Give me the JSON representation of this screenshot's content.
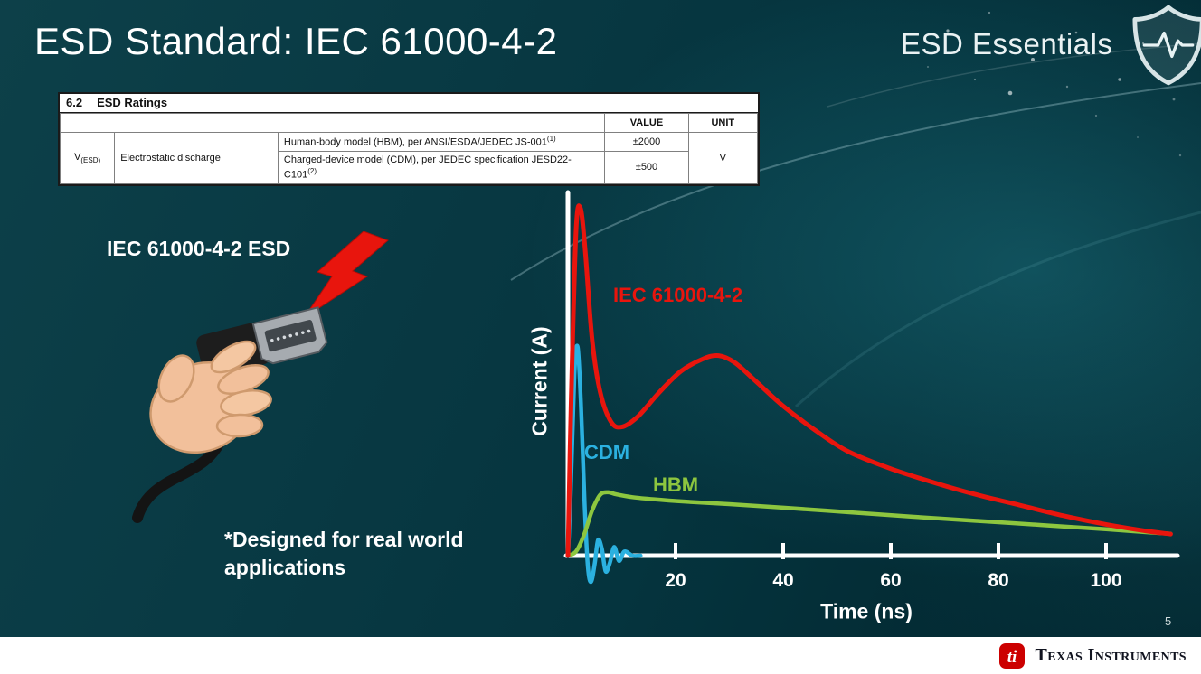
{
  "slide": {
    "title": "ESD Standard: IEC 61000-4-2",
    "program_name": "ESD Essentials",
    "page_number": "5",
    "header_icon": "shield-pulse-icon"
  },
  "ratings_table": {
    "section_number": "6.2",
    "section_title": "ESD Ratings",
    "value_header": "VALUE",
    "unit_header": "UNIT",
    "param_symbol": "V",
    "param_subscript": "(ESD)",
    "param_name": "Electrostatic discharge",
    "rows": [
      {
        "model": "Human-body model (HBM), per ANSI/ESDA/JEDEC JS-001",
        "footnote": "(1)",
        "value": "±2000"
      },
      {
        "model": "Charged-device model (CDM), per JEDEC specification JESD22-C101",
        "footnote": "(2)",
        "value": "±500"
      }
    ],
    "unit": "V"
  },
  "illustration": {
    "caption": "IEC 61000-4-2 ESD",
    "note_lines": [
      "*Designed for real world",
      "applications"
    ]
  },
  "chart_data": {
    "type": "line",
    "title": "",
    "xlabel": "Time (ns)",
    "ylabel": "Current (A)",
    "x_ticks": [
      20,
      40,
      60,
      80,
      100
    ],
    "xlim": [
      0,
      113
    ],
    "y_ticks": [],
    "grid": false,
    "legend_position": "inline-labels",
    "series": [
      {
        "name": "IEC 61000-4-2",
        "color": "#e8150d",
        "points": [
          [
            0,
            0
          ],
          [
            0.6,
            0.45
          ],
          [
            1.5,
            0.93
          ],
          [
            2.3,
            1.0
          ],
          [
            3.2,
            0.88
          ],
          [
            4.5,
            0.62
          ],
          [
            6,
            0.47
          ],
          [
            8,
            0.385
          ],
          [
            10,
            0.37
          ],
          [
            13,
            0.4
          ],
          [
            17,
            0.47
          ],
          [
            21,
            0.53
          ],
          [
            25,
            0.565
          ],
          [
            28,
            0.575
          ],
          [
            31,
            0.555
          ],
          [
            35,
            0.5
          ],
          [
            40,
            0.43
          ],
          [
            46,
            0.36
          ],
          [
            52,
            0.3
          ],
          [
            60,
            0.25
          ],
          [
            68,
            0.21
          ],
          [
            76,
            0.175
          ],
          [
            84,
            0.145
          ],
          [
            92,
            0.115
          ],
          [
            100,
            0.09
          ],
          [
            107,
            0.072
          ],
          [
            112,
            0.062
          ]
        ]
      },
      {
        "name": "CDM",
        "color": "#2bb1e0",
        "points": [
          [
            0,
            0
          ],
          [
            0.5,
            0.18
          ],
          [
            1.2,
            0.52
          ],
          [
            1.8,
            0.6
          ],
          [
            2.4,
            0.44
          ],
          [
            3.1,
            0.15
          ],
          [
            3.7,
            -0.03
          ],
          [
            4.3,
            -0.075
          ],
          [
            5,
            -0.02
          ],
          [
            5.6,
            0.045
          ],
          [
            6.3,
            0.02
          ],
          [
            7,
            -0.045
          ],
          [
            7.8,
            -0.02
          ],
          [
            8.6,
            0.025
          ],
          [
            9.5,
            -0.015
          ],
          [
            10.5,
            0.012
          ],
          [
            12,
            0.0
          ],
          [
            13.5,
            0.0
          ]
        ]
      },
      {
        "name": "HBM",
        "color": "#8dc63f",
        "points": [
          [
            0,
            0
          ],
          [
            1.5,
            0.012
          ],
          [
            3,
            0.06
          ],
          [
            4.5,
            0.13
          ],
          [
            6,
            0.175
          ],
          [
            7.5,
            0.182
          ],
          [
            9,
            0.176
          ],
          [
            12,
            0.168
          ],
          [
            16,
            0.162
          ],
          [
            22,
            0.155
          ],
          [
            30,
            0.148
          ],
          [
            40,
            0.138
          ],
          [
            52,
            0.125
          ],
          [
            64,
            0.112
          ],
          [
            76,
            0.1
          ],
          [
            88,
            0.088
          ],
          [
            100,
            0.076
          ],
          [
            108,
            0.067
          ],
          [
            112,
            0.063
          ]
        ]
      }
    ]
  },
  "footer": {
    "brand": "Texas Instruments",
    "logo_monogram": "ti"
  },
  "colors": {
    "background_teal": "#06363f",
    "iec_red": "#e8150d",
    "cdm_blue": "#2bb1e0",
    "hbm_green": "#8dc63f",
    "ti_red": "#cc0000",
    "footer_bg": "#ffffff"
  }
}
